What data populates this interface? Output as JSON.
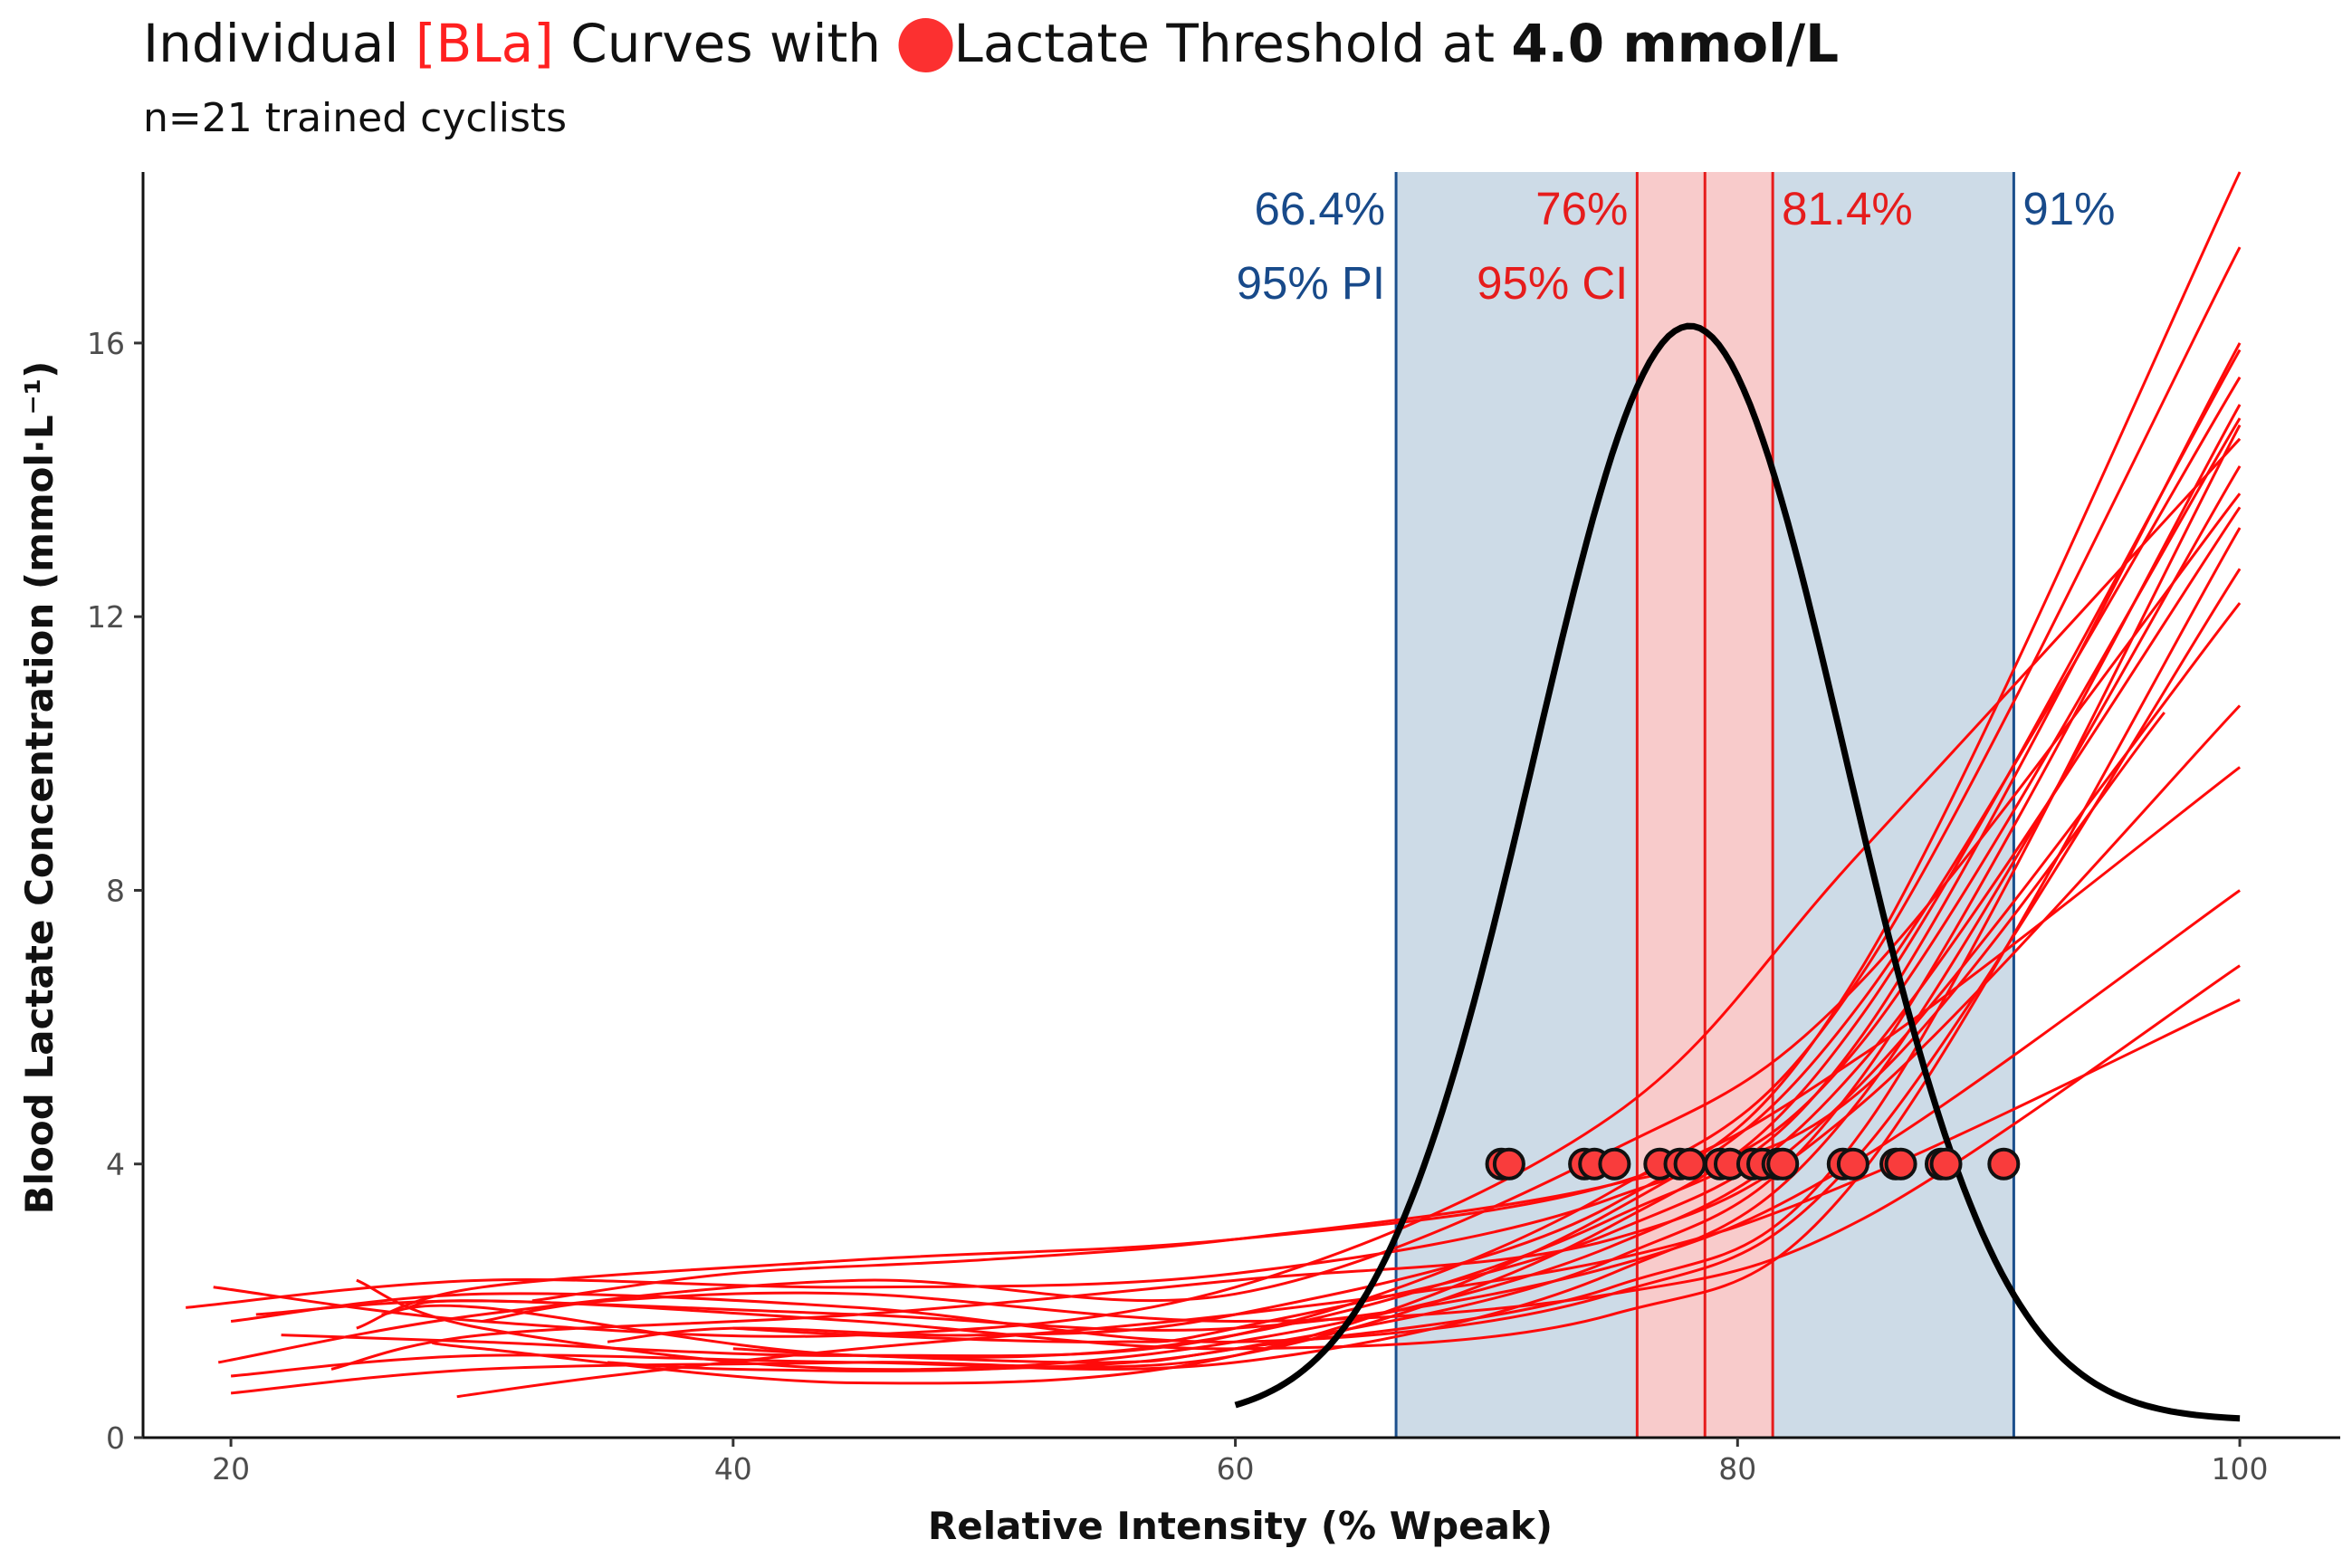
{
  "chart_data": {
    "type": "line",
    "title": {
      "part1": "Individual ",
      "part2": "[BLa]",
      "part3": " Curves with ",
      "part4": " Lactate Threshold at ",
      "part5": "4.0 mmol/L"
    },
    "subtitle": "n=21 trained cyclists",
    "xlabel": "Relative Intensity (% Wpeak)",
    "ylabel": "Blood Lactate Concentration (mmol·L⁻¹)",
    "xlim": [
      16.5,
      104
    ],
    "ylim": [
      0,
      18.5
    ],
    "x_ticks": [
      20,
      40,
      60,
      80,
      100
    ],
    "y_ticks": [
      0,
      4,
      8,
      12,
      16
    ],
    "grid": false,
    "legend": "none",
    "threshold_mmol": 4.0,
    "prediction_interval": {
      "low": 66.4,
      "high": 91,
      "low_label": "66.4%",
      "high_label": "91%",
      "name": "95% PI"
    },
    "confidence_interval": {
      "low": 76,
      "high": 81.4,
      "mean": 78.7,
      "low_label": "76%",
      "high_label": "81.4%",
      "name": "95% CI"
    },
    "density_curve": {
      "mean": 78.1,
      "sd": 6.2,
      "peak": 16,
      "x_range": [
        60,
        100
      ]
    },
    "threshold_points": [
      70.6,
      70.9,
      73.9,
      74.3,
      75.1,
      76.9,
      77.7,
      78.1,
      79.3,
      79.7,
      80.6,
      81.0,
      81.6,
      81.8,
      84.2,
      84.6,
      86.3,
      86.5,
      88.1,
      88.3,
      90.6
    ],
    "series": [
      {
        "x": [
          18.2,
          30,
          45,
          60,
          75,
          85,
          100
        ],
        "y": [
          1.9,
          2.3,
          2.2,
          2.4,
          3.5,
          5.8,
          14.9
        ]
      },
      {
        "x": [
          19.3,
          30,
          45,
          60,
          75,
          85,
          100
        ],
        "y": [
          2.2,
          1.7,
          1.5,
          2.2,
          4.7,
          8.6,
          14.6
        ]
      },
      {
        "x": [
          19.5,
          30,
          45,
          60,
          75,
          85,
          100
        ],
        "y": [
          1.1,
          1.8,
          2.3,
          2.1,
          4.2,
          6.7,
          13.8
        ]
      },
      {
        "x": [
          20,
          30,
          45,
          60,
          75,
          85,
          100
        ],
        "y": [
          0.65,
          1.0,
          1.1,
          1.2,
          3.1,
          6.2,
          15.9
        ]
      },
      {
        "x": [
          20,
          30,
          45,
          60,
          75,
          85,
          100
        ],
        "y": [
          0.9,
          1.2,
          1.1,
          1.1,
          2.4,
          5.0,
          14.2
        ]
      },
      {
        "x": [
          20,
          30,
          45,
          60,
          75,
          85,
          100
        ],
        "y": [
          1.7,
          2.1,
          1.9,
          1.4,
          2.1,
          4.2,
          12.7
        ]
      },
      {
        "x": [
          21,
          30,
          45,
          60,
          75,
          85,
          100
        ],
        "y": [
          1.8,
          2.0,
          1.7,
          1.3,
          1.8,
          3.9,
          13.3
        ]
      },
      {
        "x": [
          22,
          30,
          45,
          60,
          75,
          85,
          100
        ],
        "y": [
          1.5,
          1.4,
          1.2,
          1.5,
          3.6,
          6.8,
          17.4
        ]
      },
      {
        "x": [
          24,
          30,
          45,
          60,
          75,
          85,
          100
        ],
        "y": [
          1.0,
          1.5,
          1.8,
          2.3,
          2.9,
          4.9,
          10.7
        ]
      },
      {
        "x": [
          25,
          30,
          45,
          60,
          75,
          85,
          100
        ],
        "y": [
          2.3,
          1.6,
          1.0,
          1.4,
          2.8,
          5.2,
          12.2
        ]
      },
      {
        "x": [
          25,
          30,
          45,
          60,
          75,
          85,
          100
        ],
        "y": [
          1.6,
          2.2,
          2.6,
          2.9,
          3.7,
          5.6,
          9.8
        ]
      },
      {
        "x": [
          26,
          30,
          45,
          60,
          75,
          85,
          100
        ],
        "y": [
          1.8,
          1.9,
          1.2,
          1.5,
          3.2,
          5.9,
          16.0
        ]
      },
      {
        "x": [
          27,
          30,
          45,
          60,
          75,
          85,
          100
        ],
        "y": [
          1.9,
          2.0,
          1.8,
          1.6,
          2.5,
          4.1,
          8.0
        ]
      },
      {
        "x": [
          28,
          30,
          45,
          60,
          75,
          85,
          100
        ],
        "y": [
          1.4,
          1.3,
          0.8,
          1.2,
          3.3,
          6.4,
          15.5
        ]
      },
      {
        "x": [
          29,
          35,
          45,
          60,
          75,
          85,
          100
        ],
        "y": [
          0.6,
          0.9,
          1.3,
          1.8,
          2.6,
          3.8,
          6.4
        ]
      },
      {
        "x": [
          30,
          35,
          45,
          60,
          75,
          85,
          100
        ],
        "y": [
          1.7,
          2.0,
          2.1,
          1.7,
          2.1,
          3.2,
          6.9
        ]
      },
      {
        "x": [
          32,
          40,
          50,
          60,
          75,
          85,
          97
        ],
        "y": [
          2.0,
          2.4,
          2.6,
          2.9,
          3.7,
          5.1,
          10.6
        ]
      },
      {
        "x": [
          35,
          40,
          50,
          60,
          75,
          85,
          100
        ],
        "y": [
          1.4,
          1.6,
          1.5,
          1.8,
          3.4,
          6.9,
          18.5
        ]
      },
      {
        "x": [
          35,
          40,
          50,
          60,
          75,
          85,
          100
        ],
        "y": [
          1.1,
          1.0,
          1.0,
          1.3,
          2.6,
          5.3,
          15.1
        ]
      },
      {
        "x": [
          40,
          45,
          55,
          60,
          75,
          85,
          100
        ],
        "y": [
          1.3,
          1.2,
          1.1,
          1.3,
          2.2,
          4.5,
          14.8
        ]
      },
      {
        "x": [
          40,
          45,
          55,
          60,
          75,
          85,
          100
        ],
        "y": [
          1.6,
          1.5,
          1.4,
          1.6,
          3.0,
          5.5,
          13.6
        ]
      }
    ]
  }
}
